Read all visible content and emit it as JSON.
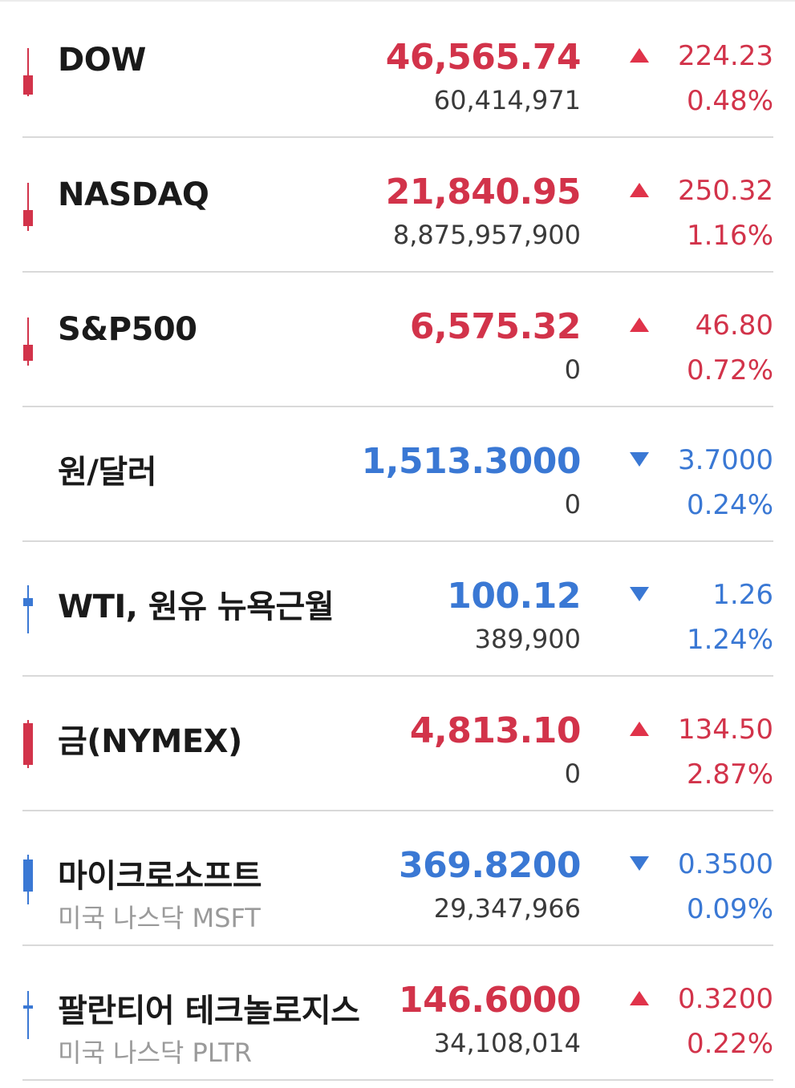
{
  "colors": {
    "up": "#d2334a",
    "down": "#3a78d4",
    "name": "#1a1a1a",
    "sub": "#9a9a9a",
    "volume": "#3a3a3a",
    "divider": "#d9d9d9"
  },
  "rows": [
    {
      "name": "DOW",
      "sub": "",
      "price": "46,565.74",
      "volume": "60,414,971",
      "change": "224.23",
      "pct": "0.48%",
      "direction": "up",
      "arrow_icon": "triangle-up-icon"
    },
    {
      "name": "NASDAQ",
      "sub": "",
      "price": "21,840.95",
      "volume": "8,875,957,900",
      "change": "250.32",
      "pct": "1.16%",
      "direction": "up",
      "arrow_icon": "triangle-up-icon"
    },
    {
      "name": "S&P500",
      "sub": "",
      "price": "6,575.32",
      "volume": "0",
      "change": "46.80",
      "pct": "0.72%",
      "direction": "up",
      "arrow_icon": "triangle-up-icon"
    },
    {
      "name": "원/달러",
      "sub": "",
      "price": "1,513.3000",
      "volume": "0",
      "change": "3.7000",
      "pct": "0.24%",
      "direction": "down",
      "arrow_icon": "triangle-down-icon"
    },
    {
      "name": "WTI, 원유 뉴욕근월",
      "sub": "",
      "price": "100.12",
      "volume": "389,900",
      "change": "1.26",
      "pct": "1.24%",
      "direction": "down",
      "arrow_icon": "triangle-down-icon"
    },
    {
      "name": "금(NYMEX)",
      "sub": "",
      "price": "4,813.10",
      "volume": "0",
      "change": "134.50",
      "pct": "2.87%",
      "direction": "up",
      "arrow_icon": "triangle-up-icon"
    },
    {
      "name": "마이크로소프트",
      "sub": "미국 나스닥 MSFT",
      "price": "369.8200",
      "volume": "29,347,966",
      "change": "0.3500",
      "pct": "0.09%",
      "direction": "down",
      "arrow_icon": "triangle-down-icon"
    },
    {
      "name": "팔란티어 테크놀로지스",
      "sub": "미국 나스닥 PLTR",
      "price": "146.6000",
      "volume": "34,108,014",
      "change": "0.3200",
      "pct": "0.22%",
      "direction": "up",
      "arrow_icon": "triangle-up-icon"
    }
  ]
}
